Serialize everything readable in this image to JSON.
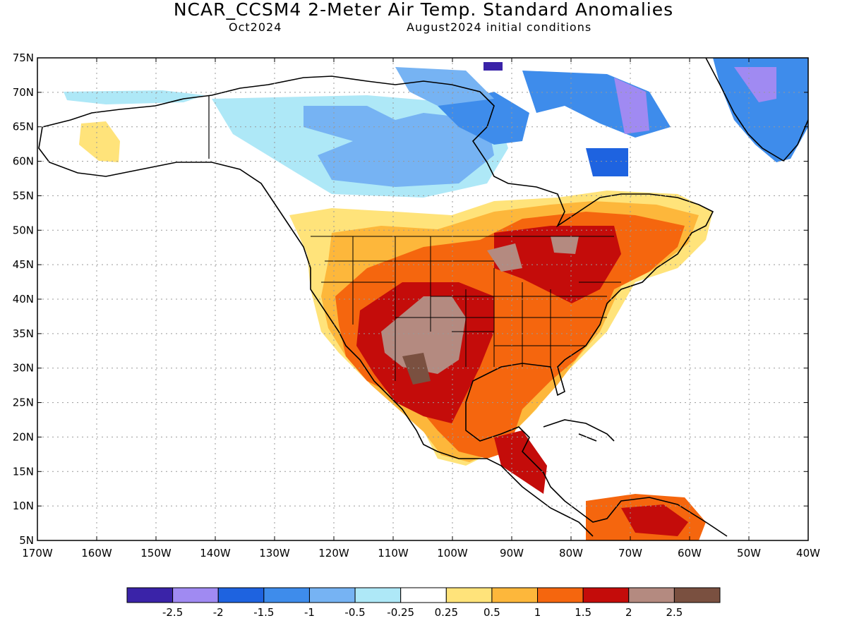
{
  "title": "NCAR_CCSM4 2-Meter Air Temp. Standard Anomalies",
  "subtitle_left": "Oct2024",
  "subtitle_right": "August2024 initial conditions",
  "lat_labels": [
    "75N",
    "70N",
    "65N",
    "60N",
    "55N",
    "50N",
    "45N",
    "40N",
    "35N",
    "30N",
    "25N",
    "20N",
    "15N",
    "10N",
    "5N"
  ],
  "lon_labels": [
    "170W",
    "160W",
    "150W",
    "140W",
    "130W",
    "120W",
    "110W",
    "100W",
    "90W",
    "80W",
    "70W",
    "60W",
    "50W",
    "40W"
  ],
  "map_extent": {
    "lon": [
      -170,
      -40
    ],
    "lat": [
      5,
      75
    ]
  },
  "grid_lines": "dotted",
  "colorbar": {
    "colors": [
      "#3a23a8",
      "#a08af2",
      "#1e63e0",
      "#3e8ceb",
      "#76b3f3",
      "#aee8f7",
      "#ffffff",
      "#ffe37a",
      "#fdb73b",
      "#f5660e",
      "#c40c0a",
      "#b48a80",
      "#7a5040"
    ],
    "labels": [
      "-2.5",
      "-2",
      "-1.5",
      "-1",
      "-0.5",
      "-0.25",
      "0.25",
      "0.5",
      "1",
      "1.5",
      "2",
      "2.5"
    ]
  }
}
